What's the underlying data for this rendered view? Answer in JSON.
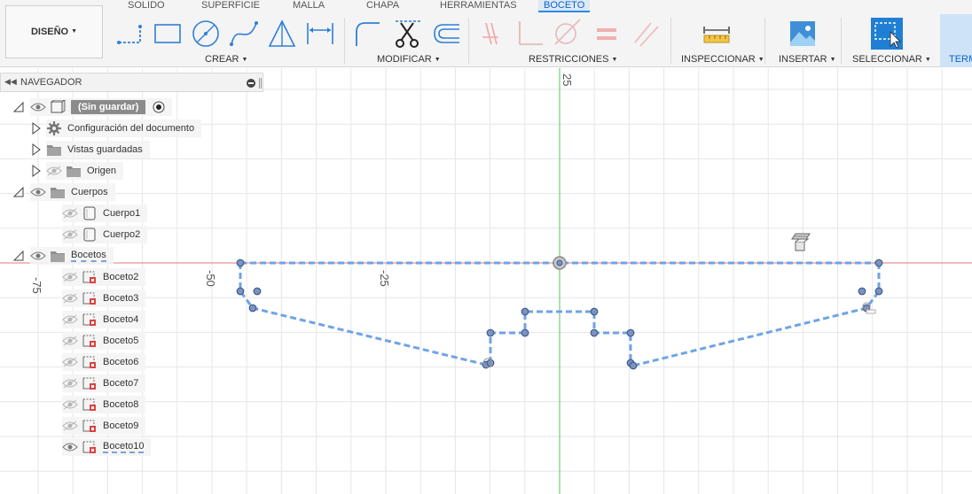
{
  "toolbar": {
    "workspace_button": "DISEÑO",
    "tabs": [
      {
        "label": "SOLIDO"
      },
      {
        "label": "SUPERFICIE"
      },
      {
        "label": "MALLA"
      },
      {
        "label": "CHAPA"
      },
      {
        "label": "HERRAMIENTAS"
      },
      {
        "label": "BOCETO",
        "active": true
      }
    ],
    "groups": {
      "crear": "CREAR",
      "modificar": "MODIFICAR",
      "restricciones": "RESTRICCIONES",
      "inspeccionar": "INSPECCIONAR",
      "insertar": "INSERTAR",
      "seleccionar": "SELECCIONAR",
      "terminar": "TERM"
    },
    "tools": {
      "crear": [
        "line-icon",
        "rectangle-icon",
        "circle-icon",
        "spline-icon",
        "triangle-icon",
        "dimension-icon"
      ],
      "modificar": [
        "fillet-icon",
        "trim-scissors-icon",
        "offset-icon"
      ],
      "restricciones": [
        "coincident-icon",
        "perpendicular-icon",
        "tangent-icon",
        "equal-icon",
        "parallel-icon"
      ],
      "inspeccionar": [
        "measure-icon"
      ],
      "insertar": [
        "insert-image-icon"
      ],
      "seleccionar": [
        "select-box-icon"
      ]
    }
  },
  "navigator": {
    "title": "NAVEGADOR",
    "root": "(Sin guardar)",
    "items": [
      {
        "label": "Configuración del documento",
        "icon": "gear-icon"
      },
      {
        "label": "Vistas guardadas",
        "icon": "folder-icon"
      },
      {
        "label": "Origen",
        "icon": "folder-icon"
      },
      {
        "label": "Cuerpos",
        "icon": "folder-icon"
      },
      {
        "label": "Cuerpo1",
        "icon": "body-icon"
      },
      {
        "label": "Cuerpo2",
        "icon": "body-icon"
      },
      {
        "label": "Bocetos",
        "icon": "folder-icon"
      },
      {
        "label": "Boceto2",
        "icon": "sketch-icon"
      },
      {
        "label": "Boceto3",
        "icon": "sketch-icon"
      },
      {
        "label": "Boceto4",
        "icon": "sketch-icon"
      },
      {
        "label": "Boceto5",
        "icon": "sketch-icon"
      },
      {
        "label": "Boceto6",
        "icon": "sketch-icon"
      },
      {
        "label": "Boceto7",
        "icon": "sketch-icon"
      },
      {
        "label": "Boceto8",
        "icon": "sketch-icon"
      },
      {
        "label": "Boceto9",
        "icon": "sketch-icon"
      },
      {
        "label": "Boceto10",
        "icon": "sketch-icon"
      }
    ]
  },
  "canvas": {
    "axis_labels": {
      "x_minus_75": "-75",
      "x_minus_50": "-50",
      "x_minus_25": "-25",
      "y_25": "25"
    },
    "colors": {
      "sketch": "#6fa3e6",
      "x_axis": "#e07a7a",
      "y_axis": "#5fbf5f",
      "grid": "#e6e6e6",
      "point_fill": "#7d93bf",
      "point_stroke": "#3c5b8f"
    }
  }
}
